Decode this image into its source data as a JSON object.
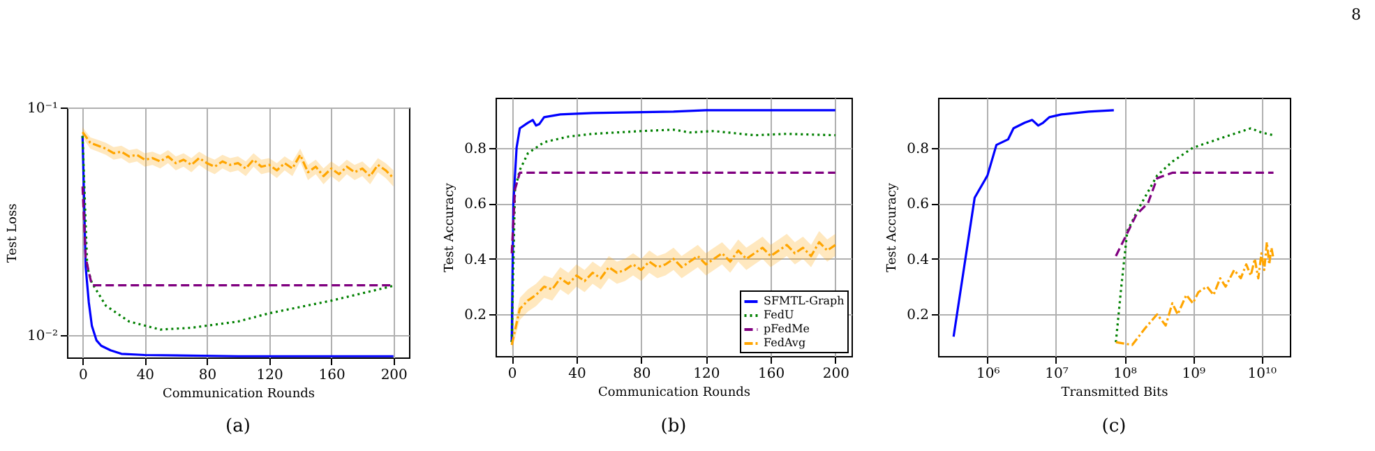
{
  "chart_data": [
    {
      "type": "line",
      "xlabel": "Communication Rounds",
      "ylabel": "Test Loss",
      "annotations": [
        "(a)"
      ],
      "log": "y",
      "grid": true,
      "xlim": [
        -10,
        210
      ],
      "xticks": [
        0,
        40,
        80,
        120,
        160,
        200
      ],
      "ylim": [
        0.008,
        0.1
      ],
      "yticks": [
        {
          "value": 0.1,
          "label": "10⁻¹"
        },
        {
          "value": 0.01,
          "label": "10⁻²"
        }
      ],
      "series": [
        {
          "color": "#0000ff",
          "line_style": "solid",
          "x": [
            0,
            2,
            4,
            6,
            9,
            12,
            18,
            25,
            40,
            100,
            200
          ],
          "values": [
            0.075,
            0.02,
            0.014,
            0.011,
            0.0095,
            0.009,
            0.0086,
            0.0083,
            0.0082,
            0.0081,
            0.0081
          ]
        },
        {
          "color": "#008000",
          "line_style": "dotted",
          "x": [
            0,
            3,
            6,
            15,
            30,
            50,
            70,
            100,
            120,
            160,
            200
          ],
          "values": [
            0.075,
            0.02,
            0.017,
            0.0135,
            0.0115,
            0.0106,
            0.0108,
            0.0115,
            0.0125,
            0.0142,
            0.0165
          ]
        },
        {
          "color": "#800080",
          "line_style": "dashed",
          "x": [
            0,
            2,
            4,
            6,
            200
          ],
          "values": [
            0.045,
            0.022,
            0.019,
            0.0166,
            0.0166
          ]
        },
        {
          "color": "#ffa500",
          "line_style": "dashdot",
          "x": [
            0,
            5,
            10,
            15,
            20,
            25,
            30,
            35,
            40,
            45,
            50,
            55,
            60,
            65,
            70,
            75,
            80,
            85,
            90,
            95,
            100,
            105,
            110,
            115,
            120,
            125,
            130,
            135,
            140,
            145,
            150,
            155,
            160,
            165,
            170,
            175,
            180,
            185,
            190,
            195,
            200
          ],
          "values": [
            0.078,
            0.07,
            0.068,
            0.066,
            0.063,
            0.064,
            0.061,
            0.062,
            0.059,
            0.06,
            0.058,
            0.061,
            0.057,
            0.059,
            0.056,
            0.06,
            0.057,
            0.055,
            0.058,
            0.056,
            0.057,
            0.054,
            0.059,
            0.055,
            0.056,
            0.053,
            0.057,
            0.054,
            0.062,
            0.052,
            0.055,
            0.05,
            0.054,
            0.051,
            0.055,
            0.052,
            0.054,
            0.05,
            0.056,
            0.053,
            0.049
          ],
          "lower": [
            0.074,
            0.066,
            0.064,
            0.062,
            0.059,
            0.06,
            0.057,
            0.058,
            0.055,
            0.056,
            0.054,
            0.057,
            0.053,
            0.055,
            0.052,
            0.056,
            0.053,
            0.051,
            0.054,
            0.052,
            0.053,
            0.05,
            0.055,
            0.051,
            0.052,
            0.049,
            0.053,
            0.05,
            0.058,
            0.048,
            0.051,
            0.046,
            0.05,
            0.047,
            0.051,
            0.048,
            0.05,
            0.046,
            0.052,
            0.049,
            0.045
          ],
          "upper": [
            0.082,
            0.074,
            0.072,
            0.07,
            0.067,
            0.068,
            0.065,
            0.066,
            0.063,
            0.064,
            0.062,
            0.065,
            0.061,
            0.063,
            0.06,
            0.064,
            0.061,
            0.059,
            0.062,
            0.06,
            0.061,
            0.058,
            0.063,
            0.059,
            0.06,
            0.057,
            0.061,
            0.058,
            0.066,
            0.056,
            0.059,
            0.054,
            0.058,
            0.055,
            0.059,
            0.056,
            0.058,
            0.054,
            0.06,
            0.057,
            0.053
          ]
        }
      ]
    },
    {
      "type": "line",
      "xlabel": "Communication Rounds",
      "ylabel": "Test Accuracy",
      "annotations": [
        "(b)"
      ],
      "grid": true,
      "legend": "bottom right",
      "xlim": [
        -10,
        210
      ],
      "xticks": [
        0,
        40,
        80,
        120,
        160,
        200
      ],
      "ylim": [
        0.05,
        0.98
      ],
      "yticks": [
        0.2,
        0.4,
        0.6,
        0.8
      ],
      "series": [
        {
          "name": "SFMTL-Graph",
          "color": "#0000ff",
          "line_style": "solid",
          "x": [
            0,
            1,
            3,
            5,
            10,
            13,
            15,
            17,
            20,
            30,
            50,
            100,
            120,
            200
          ],
          "values": [
            0.1,
            0.6,
            0.8,
            0.87,
            0.89,
            0.9,
            0.88,
            0.885,
            0.91,
            0.92,
            0.925,
            0.93,
            0.935,
            0.935
          ]
        },
        {
          "name": "FedU",
          "color": "#008000",
          "line_style": "dotted",
          "x": [
            0,
            2,
            5,
            10,
            20,
            35,
            50,
            80,
            100,
            110,
            125,
            150,
            170,
            200
          ],
          "values": [
            0.1,
            0.65,
            0.72,
            0.78,
            0.82,
            0.84,
            0.85,
            0.86,
            0.865,
            0.855,
            0.86,
            0.845,
            0.85,
            0.845
          ]
        },
        {
          "name": "pFedMe",
          "color": "#800080",
          "line_style": "dashed",
          "x": [
            0,
            2,
            5,
            200
          ],
          "values": [
            0.42,
            0.65,
            0.71,
            0.71
          ]
        },
        {
          "name": "FedAvg",
          "color": "#ffa500",
          "line_style": "dashdot",
          "x": [
            0,
            5,
            10,
            15,
            20,
            25,
            30,
            35,
            40,
            45,
            50,
            55,
            60,
            65,
            70,
            75,
            80,
            85,
            90,
            95,
            100,
            105,
            110,
            115,
            120,
            125,
            130,
            135,
            140,
            145,
            150,
            155,
            160,
            165,
            170,
            175,
            180,
            185,
            190,
            195,
            200
          ],
          "values": [
            0.09,
            0.22,
            0.25,
            0.27,
            0.3,
            0.29,
            0.33,
            0.31,
            0.34,
            0.32,
            0.35,
            0.33,
            0.37,
            0.35,
            0.36,
            0.38,
            0.36,
            0.39,
            0.37,
            0.38,
            0.4,
            0.37,
            0.39,
            0.41,
            0.38,
            0.4,
            0.42,
            0.39,
            0.43,
            0.4,
            0.42,
            0.44,
            0.41,
            0.43,
            0.45,
            0.42,
            0.44,
            0.41,
            0.46,
            0.43,
            0.45
          ],
          "lower": [
            0.07,
            0.18,
            0.21,
            0.23,
            0.26,
            0.25,
            0.29,
            0.27,
            0.3,
            0.28,
            0.31,
            0.29,
            0.33,
            0.31,
            0.32,
            0.34,
            0.32,
            0.35,
            0.33,
            0.34,
            0.36,
            0.33,
            0.35,
            0.37,
            0.34,
            0.36,
            0.38,
            0.35,
            0.39,
            0.36,
            0.38,
            0.4,
            0.37,
            0.39,
            0.41,
            0.38,
            0.4,
            0.37,
            0.42,
            0.39,
            0.41
          ],
          "upper": [
            0.11,
            0.26,
            0.29,
            0.31,
            0.34,
            0.33,
            0.37,
            0.35,
            0.38,
            0.36,
            0.39,
            0.37,
            0.41,
            0.39,
            0.4,
            0.42,
            0.4,
            0.43,
            0.41,
            0.42,
            0.44,
            0.41,
            0.43,
            0.45,
            0.42,
            0.44,
            0.46,
            0.43,
            0.47,
            0.44,
            0.46,
            0.48,
            0.45,
            0.47,
            0.49,
            0.46,
            0.48,
            0.45,
            0.5,
            0.47,
            0.49
          ]
        }
      ]
    },
    {
      "type": "line",
      "xlabel": "Transmitted Bits",
      "ylabel": "Test Accuracy",
      "annotations": [
        "(c)",
        "8"
      ],
      "log": "x",
      "grid": true,
      "xlim": [
        190000,
        26000000000
      ],
      "xticks": [
        {
          "value": 1000000,
          "label": "10⁶"
        },
        {
          "value": 10000000,
          "label": "10⁷"
        },
        {
          "value": 100000000,
          "label": "10⁸"
        },
        {
          "value": 1000000000,
          "label": "10⁹"
        },
        {
          "value": 10000000000,
          "label": "10¹⁰"
        }
      ],
      "ylim": [
        0.05,
        0.98
      ],
      "yticks": [
        0.2,
        0.4,
        0.6,
        0.8
      ],
      "series": [
        {
          "color": "#0000ff",
          "line_style": "solid",
          "x": [
            320000,
            650000,
            1000000,
            1350000,
            2000000,
            2400000,
            3500000,
            4500000,
            5500000,
            6500000,
            8000000,
            12000000,
            30000000,
            70000000
          ],
          "values": [
            0.12,
            0.62,
            0.7,
            0.81,
            0.83,
            0.87,
            0.89,
            0.9,
            0.88,
            0.89,
            0.91,
            0.92,
            0.93,
            0.935
          ]
        },
        {
          "color": "#008000",
          "line_style": "dotted",
          "x": [
            75000000,
            90000000,
            110000000,
            160000000,
            300000000,
            500000000,
            1000000000,
            3000000000,
            7000000000,
            10000000000,
            15000000000
          ],
          "values": [
            0.1,
            0.3,
            0.5,
            0.58,
            0.7,
            0.75,
            0.8,
            0.84,
            0.87,
            0.855,
            0.845
          ]
        },
        {
          "color": "#800080",
          "line_style": "dashed",
          "x": [
            75000000,
            150000000,
            220000000,
            300000000,
            500000000,
            15000000000
          ],
          "values": [
            0.41,
            0.56,
            0.6,
            0.69,
            0.71,
            0.71
          ]
        },
        {
          "color": "#ffa500",
          "line_style": "dashdot",
          "x": [
            75000000,
            130000000,
            200000000,
            300000000,
            400000000,
            500000000,
            600000000,
            800000000,
            1000000000,
            1200000000,
            1600000000,
            2000000000,
            2500000000,
            3000000000,
            4000000000,
            5000000000,
            6000000000,
            7000000000,
            8000000000,
            9000000000,
            10000000000,
            11000000000,
            12000000000,
            13000000000,
            14000000000,
            15000000000
          ],
          "values": [
            0.1,
            0.09,
            0.15,
            0.2,
            0.16,
            0.24,
            0.2,
            0.27,
            0.24,
            0.28,
            0.3,
            0.27,
            0.33,
            0.3,
            0.36,
            0.33,
            0.38,
            0.34,
            0.4,
            0.33,
            0.42,
            0.36,
            0.46,
            0.38,
            0.44,
            0.4
          ]
        }
      ]
    }
  ]
}
